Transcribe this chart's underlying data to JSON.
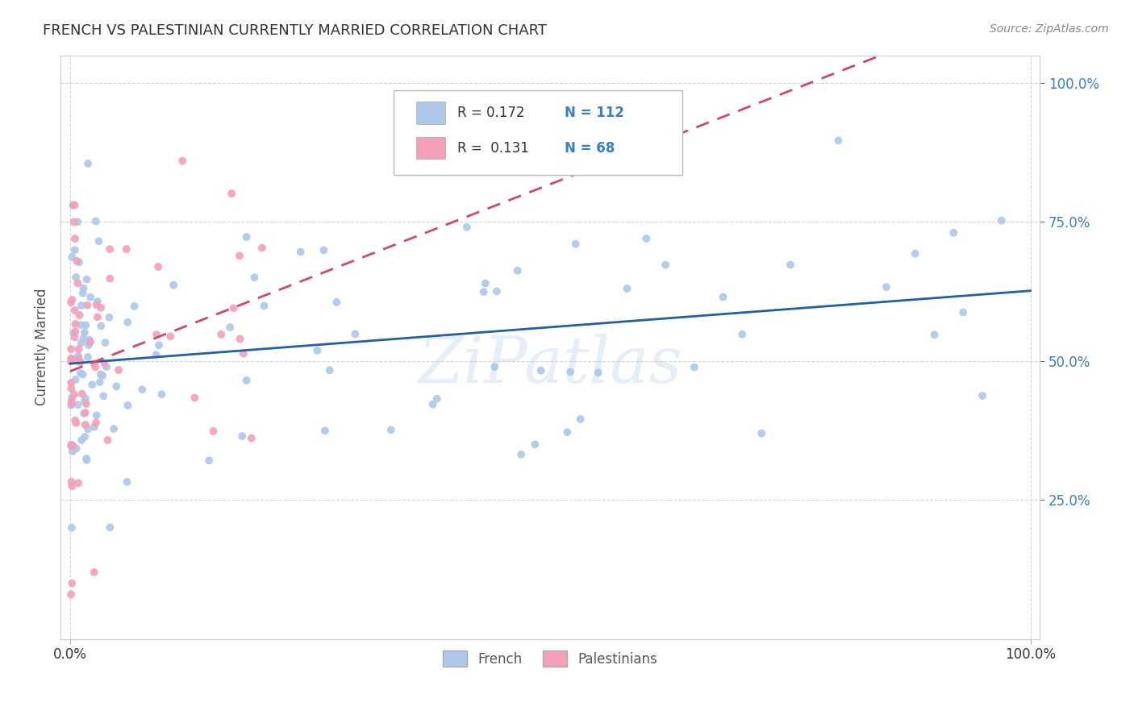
{
  "title": "FRENCH VS PALESTINIAN CURRENTLY MARRIED CORRELATION CHART",
  "source": "Source: ZipAtlas.com",
  "ylabel": "Currently Married",
  "french_R": "0.172",
  "french_N": "112",
  "palestinian_R": "0.131",
  "palestinian_N": "68",
  "french_color": "#adc8e8",
  "french_line_color": "#2060a8",
  "palestinian_color": "#f4a0b8",
  "palestinian_line_color": "#d04868",
  "legend_french_label": "French",
  "legend_palestinian_label": "Palestinians",
  "watermark": "ZiPatlas",
  "background_color": "#ffffff",
  "plot_background": "#ffffff",
  "grid_color": "#cccccc",
  "title_color": "#333333",
  "annotation_color": "#3a7fc1",
  "ytick_color": "#3a7fc1",
  "xtick_color": "#333333"
}
